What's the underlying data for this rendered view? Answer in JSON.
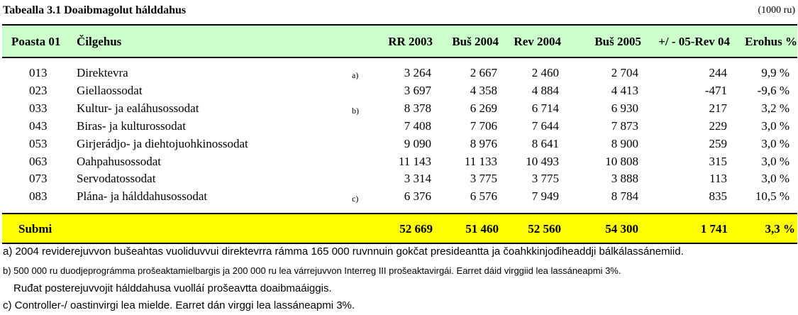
{
  "title": "Tabealla 3.1  Doaibmagolut hálddahus",
  "unit": "(1000 ru)",
  "header": {
    "poasta": "Poasta 01",
    "cilgehus": "Čilgehus",
    "rr2003": "RR 2003",
    "bus2004": "Buš 2004",
    "rev2004": "Rev 2004",
    "bus2005": "Buš 2005",
    "diff": "+/ - 05-Rev 04",
    "erohus": "Erohus %"
  },
  "rows": [
    {
      "poasta": "013",
      "cilgehus": "Direktevra",
      "note": "a)",
      "rr2003": "3 264",
      "bus2004": "2 667",
      "rev2004": "2 460",
      "bus2005": "2 704",
      "diff": "244",
      "erohus": "9,9 %"
    },
    {
      "poasta": "023",
      "cilgehus": "Giellaossodat",
      "note": "",
      "rr2003": "3 697",
      "bus2004": "4 358",
      "rev2004": "4 884",
      "bus2005": "4 413",
      "diff": "-471",
      "erohus": "-9,6 %"
    },
    {
      "poasta": "033",
      "cilgehus": "Kultur- ja ealáhusossodat",
      "note": "b)",
      "rr2003": "8 378",
      "bus2004": "6 269",
      "rev2004": "6 714",
      "bus2005": "6 930",
      "diff": "217",
      "erohus": "3,2 %"
    },
    {
      "poasta": "043",
      "cilgehus": "Biras- ja kulturossodat",
      "note": "",
      "rr2003": "7 408",
      "bus2004": "7 706",
      "rev2004": "7 644",
      "bus2005": "7 873",
      "diff": "229",
      "erohus": "3,0 %"
    },
    {
      "poasta": "053",
      "cilgehus": "Girjerádjo- ja diehtojuohkinossodat",
      "note": "",
      "rr2003": "9 090",
      "bus2004": "8 976",
      "rev2004": "8 641",
      "bus2005": "8 900",
      "diff": "259",
      "erohus": "3,0 %"
    },
    {
      "poasta": "063",
      "cilgehus": "Oahpahusossodat",
      "note": "",
      "rr2003": "11 143",
      "bus2004": "11 133",
      "rev2004": "10 493",
      "bus2005": "10 808",
      "diff": "315",
      "erohus": "3,0 %"
    },
    {
      "poasta": "073",
      "cilgehus": "Servodatossodat",
      "note": "",
      "rr2003": "3 314",
      "bus2004": "3 775",
      "rev2004": "3 775",
      "bus2005": "3 888",
      "diff": "113",
      "erohus": "3,0 %"
    },
    {
      "poasta": "083",
      "cilgehus": "Plána- ja hálddahusossodat",
      "note": "c)",
      "rr2003": "6 376",
      "bus2004": "6 576",
      "rev2004": "7 949",
      "bus2005": "8 784",
      "diff": "835",
      "erohus": "10,5 %"
    }
  ],
  "total": {
    "label": "Submi",
    "rr2003": "52 669",
    "bus2004": "51 460",
    "rev2004": "52 560",
    "bus2005": "54 300",
    "diff": "1 741",
    "erohus": "3,3 %"
  },
  "notes": {
    "a": "a) 2004 reviderejuvvon bušeahtas vuoliduvvui direktevrra rámma 165 000 ruvnnuin gokčat presideantta ja čoahkkinjođiheaddji bálkálassánemiid.",
    "b": "b) 500 000 ru duodjeprográmma prošeaktamielbargis ja 200 000 ru lea várrejuvvon Interreg III prošeaktavirgái. Earret dáid virggiid lea lassáneapmi 3%.",
    "b2": "Ruđat posterejuvvojit hálddahusa vuolláí prošeavtta doaibmaáiggis.",
    "c": "c) Controller-/ oastinvirgi lea mielde. Earret dán virggi lea lassáneapmi 3%."
  }
}
